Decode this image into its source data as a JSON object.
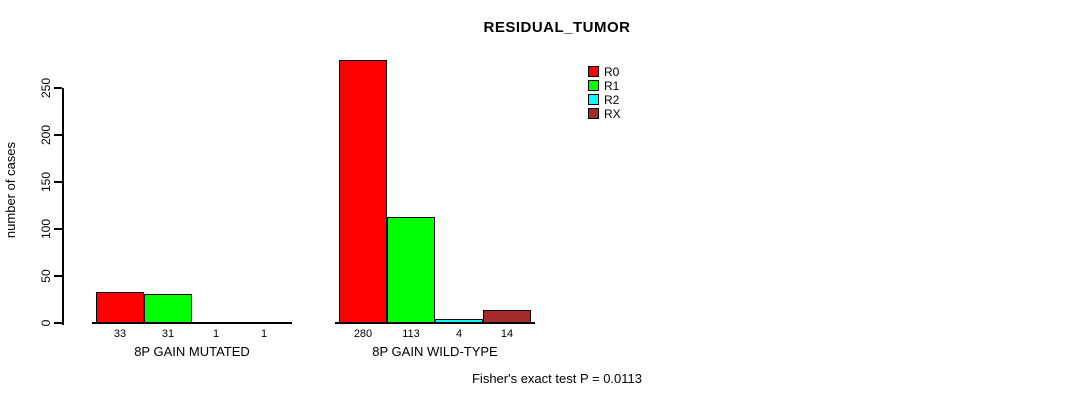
{
  "chart_data": {
    "type": "bar",
    "title": "RESIDUAL_TUMOR",
    "ylabel": "number of cases",
    "xlabel": "",
    "ylim": [
      0,
      250
    ],
    "yticks": [
      0,
      50,
      100,
      150,
      200,
      250
    ],
    "grid": false,
    "legend_position": "top-right",
    "series": [
      "R0",
      "R1",
      "R2",
      "RX"
    ],
    "colors": [
      "#FF0000",
      "#00FF00",
      "#00FFFF",
      "#A52A2A"
    ],
    "groups": [
      {
        "label": "8P GAIN MUTATED",
        "values": [
          33,
          31,
          1,
          1
        ]
      },
      {
        "label": "8P GAIN WILD-TYPE",
        "values": [
          280,
          113,
          4,
          14
        ]
      }
    ],
    "annotation": "Fisher's exact test P = 0.0113"
  },
  "legend": {
    "items": [
      {
        "label": "R0",
        "color": "#FF0000"
      },
      {
        "label": "R1",
        "color": "#00FF00"
      },
      {
        "label": "R2",
        "color": "#00FFFF"
      },
      {
        "label": "RX",
        "color": "#A52A2A"
      }
    ]
  }
}
